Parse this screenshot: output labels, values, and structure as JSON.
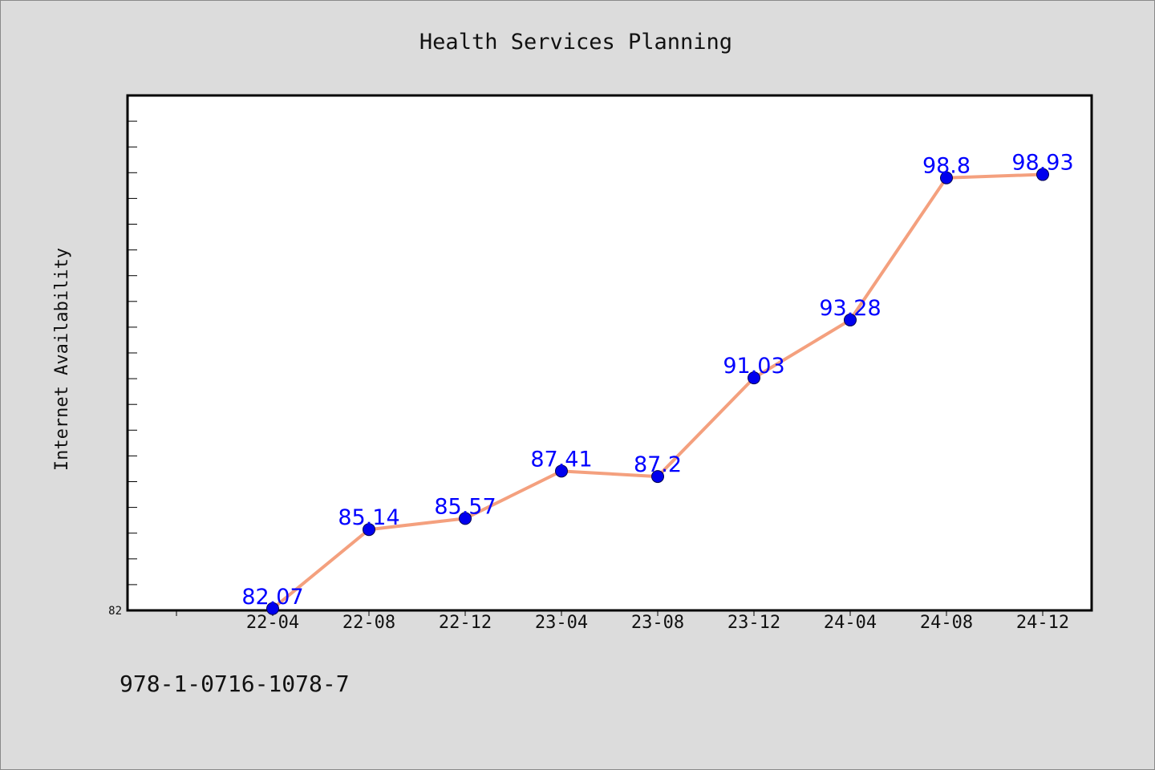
{
  "chart_data": {
    "type": "line",
    "title": "Health Services Planning",
    "xlabel": "",
    "ylabel": "Internet Availability",
    "categories": [
      "22-04",
      "22-08",
      "22-12",
      "23-04",
      "23-08",
      "23-12",
      "24-04",
      "24-08",
      "24-12"
    ],
    "series": [
      {
        "values": [
          82.07,
          85.14,
          85.57,
          87.41,
          87.2,
          91.03,
          93.28,
          98.8,
          98.93
        ],
        "line_color": "#f4a07e",
        "marker_color": "#0000ee",
        "label_color": "#0000ff"
      }
    ],
    "ylim": [
      82,
      102
    ],
    "y_tick_labels_shown": [
      "82"
    ],
    "grid": false,
    "legend": "none"
  },
  "footer": {
    "isbn": "978-1-0716-1078-7"
  }
}
